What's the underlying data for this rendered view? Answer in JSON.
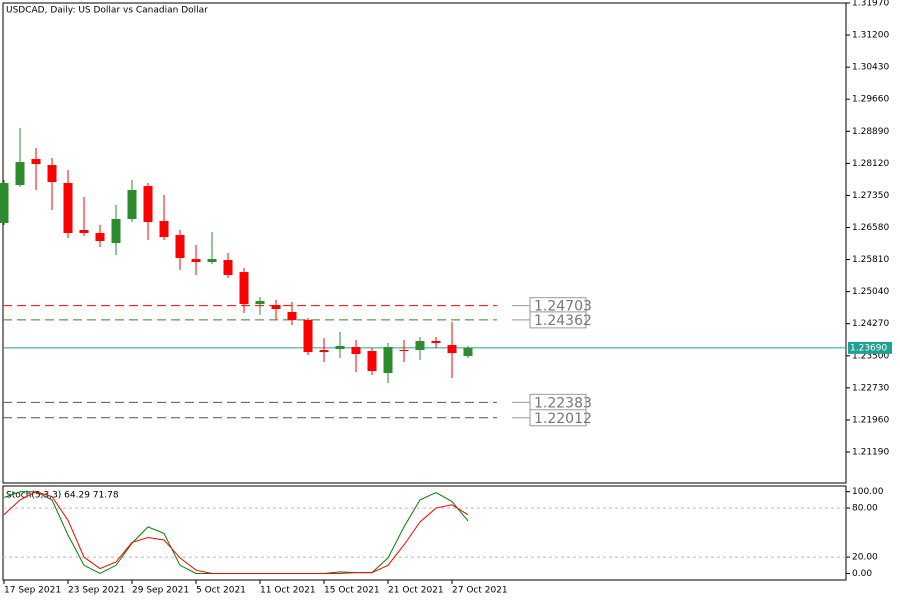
{
  "chart_data": [
    {
      "type": "candlestick",
      "title": "USDCAD, Daily:  US Dollar vs Canadian Dollar",
      "categories": [
        "17 Sep 2021",
        null,
        null,
        null,
        "23 Sep 2021",
        null,
        null,
        null,
        "29 Sep 2021",
        null,
        null,
        null,
        "5 Oct 2021",
        null,
        null,
        null,
        "11 Oct 2021",
        null,
        null,
        null,
        "15 Oct 2021",
        null,
        null,
        null,
        "21 Oct 2021",
        null,
        null,
        null,
        "27 Oct 2021",
        null
      ],
      "open": [
        1.26688,
        1.276,
        1.28224,
        1.2808,
        1.27648,
        1.2652,
        1.26448,
        1.26208,
        1.26784,
        1.27576,
        1.26736,
        1.264,
        1.25823,
        1.25751,
        1.25799,
        1.25511,
        1.24743,
        1.24719,
        1.24551,
        1.24359,
        1.23639,
        1.23663,
        1.23711,
        1.23614,
        1.23086,
        1.23639,
        1.23639,
        1.23855,
        1.23759,
        1.23494
      ],
      "high": [
        1.2772,
        1.28969,
        1.28489,
        1.28248,
        1.2796,
        1.27312,
        1.2664,
        1.2712,
        1.2772,
        1.27648,
        1.2736,
        1.2652,
        1.2616,
        1.26472,
        1.25968,
        1.25607,
        1.24911,
        1.24839,
        1.24791,
        1.24407,
        1.23927,
        1.24071,
        1.23879,
        1.23686,
        1.23807,
        1.23879,
        1.23951,
        1.23951,
        1.24311,
        1.23735
      ],
      "low": [
        1.2664,
        1.27552,
        1.2748,
        1.26999,
        1.26328,
        1.26376,
        1.26112,
        1.25919,
        1.26712,
        1.2628,
        1.2628,
        1.25559,
        1.25439,
        1.25703,
        1.25367,
        1.24527,
        1.24479,
        1.24359,
        1.24239,
        1.23518,
        1.2335,
        1.23446,
        1.2311,
        1.23038,
        1.22846,
        1.2335,
        1.23398,
        1.23686,
        1.22966,
        1.23446
      ],
      "close": [
        1.27648,
        1.28152,
        1.28104,
        1.27672,
        1.26448,
        1.26448,
        1.26256,
        1.26784,
        1.2748,
        1.26712,
        1.26352,
        1.25848,
        1.25751,
        1.25823,
        1.25439,
        1.24743,
        1.24815,
        1.24623,
        1.24359,
        1.2359,
        1.2359,
        1.23735,
        1.23543,
        1.23134,
        1.23711,
        1.23614,
        1.23855,
        1.23807,
        1.23566,
        1.2369
      ],
      "up_color": "#2e8b2e",
      "down_color": "#ff0000",
      "ylim": [
        1.20446,
        1.3197
      ],
      "yticks": [
        {
          "value": 1.3197,
          "label": "1.31970"
        },
        {
          "value": 1.312,
          "label": "1.31200"
        },
        {
          "value": 1.3043,
          "label": "1.30430"
        },
        {
          "value": 1.2966,
          "label": "1.29660"
        },
        {
          "value": 1.2889,
          "label": "1.28890"
        },
        {
          "value": 1.2812,
          "label": "1.28120"
        },
        {
          "value": 1.2735,
          "label": "1.27350"
        },
        {
          "value": 1.2658,
          "label": "1.26580"
        },
        {
          "value": 1.2581,
          "label": "1.25810"
        },
        {
          "value": 1.2504,
          "label": "1.25040"
        },
        {
          "value": 1.2427,
          "label": "1.24270"
        },
        {
          "value": 1.235,
          "label": "1.23500"
        },
        {
          "value": 1.2273,
          "label": "1.22730"
        },
        {
          "value": 1.2196,
          "label": "1.21960"
        },
        {
          "value": 1.2119,
          "label": "1.21190"
        }
      ],
      "levels": [
        {
          "value": 1.24703,
          "color": "#ff0000"
        },
        {
          "value": 1.24362,
          "color": "#2e8b2e"
        },
        {
          "value": 1.22383,
          "color": "#555555"
        },
        {
          "value": 1.22012,
          "color": "#555555"
        }
      ],
      "current_price": 1.2369,
      "current_price_label": "1.23690",
      "current_price_color": "#20a090"
    },
    {
      "type": "line",
      "title": "Stoch(5,3,3) 64.29 71.78",
      "series": [
        {
          "name": "Main",
          "color": "#008000",
          "values": [
            93,
            100,
            100,
            90,
            47,
            10,
            0,
            10,
            37,
            57,
            49,
            10,
            0,
            0,
            0,
            0,
            0,
            0,
            0,
            0,
            0,
            2,
            1,
            1,
            19,
            57,
            90,
            99,
            88,
            64.29
          ]
        },
        {
          "name": "Signal",
          "color": "#ff0000",
          "values": [
            72,
            90,
            100,
            94,
            65,
            20,
            6,
            14,
            38,
            44,
            41,
            19,
            4,
            0,
            0,
            0,
            0,
            0,
            0,
            0,
            0,
            0,
            1,
            1,
            10,
            35,
            63,
            80,
            84,
            71.78
          ]
        }
      ],
      "ylim": [
        -8,
        107
      ],
      "yticks": [
        {
          "value": 100,
          "label": "100.00"
        },
        {
          "value": 80,
          "label": "80.00"
        },
        {
          "value": 20,
          "label": "20.00"
        },
        {
          "value": 0,
          "label": "0.00"
        }
      ],
      "dashed_levels": [
        80,
        20
      ]
    }
  ]
}
